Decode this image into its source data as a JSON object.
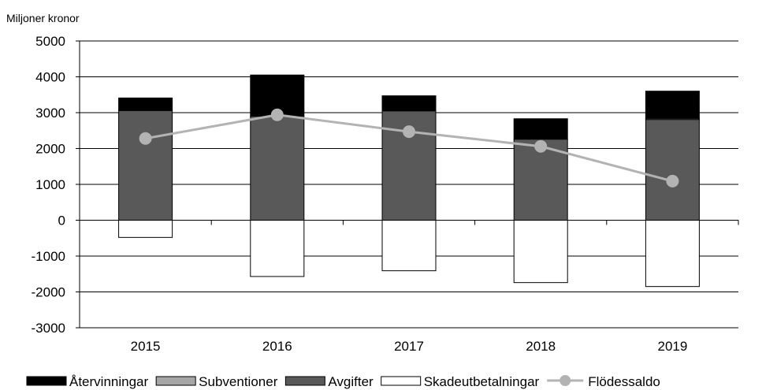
{
  "chart_data": {
    "type": "bar",
    "stacked": true,
    "ylabel": "Miljoner kronor",
    "ylim": [
      -3000,
      5000
    ],
    "yticks": [
      5000,
      4000,
      3000,
      2000,
      1000,
      0,
      -1000,
      -2000,
      -3000
    ],
    "grid": true,
    "legend_position": "bottom",
    "categories": [
      "2015",
      "2016",
      "2017",
      "2018",
      "2019"
    ],
    "series": [
      {
        "name": "Återvinningar",
        "type": "bar",
        "color": "#000000",
        "values": [
          350,
          1150,
          420,
          570,
          760
        ]
      },
      {
        "name": "Subventioner",
        "type": "bar",
        "color": "#a6a6a6",
        "values": [
          0,
          0,
          0,
          0,
          30
        ]
      },
      {
        "name": "Avgifter",
        "type": "bar",
        "color": "#595959",
        "values": [
          3060,
          2900,
          3050,
          2260,
          2810
        ]
      },
      {
        "name": "Skadeutbetalningar",
        "type": "bar",
        "color": "#ffffff",
        "values": [
          -480,
          -1570,
          -1410,
          -1740,
          -1850
        ]
      },
      {
        "name": "Flödessaldo",
        "type": "line",
        "color": "#b3b3b3",
        "values": [
          2280,
          2940,
          2470,
          2060,
          1090
        ]
      }
    ]
  }
}
